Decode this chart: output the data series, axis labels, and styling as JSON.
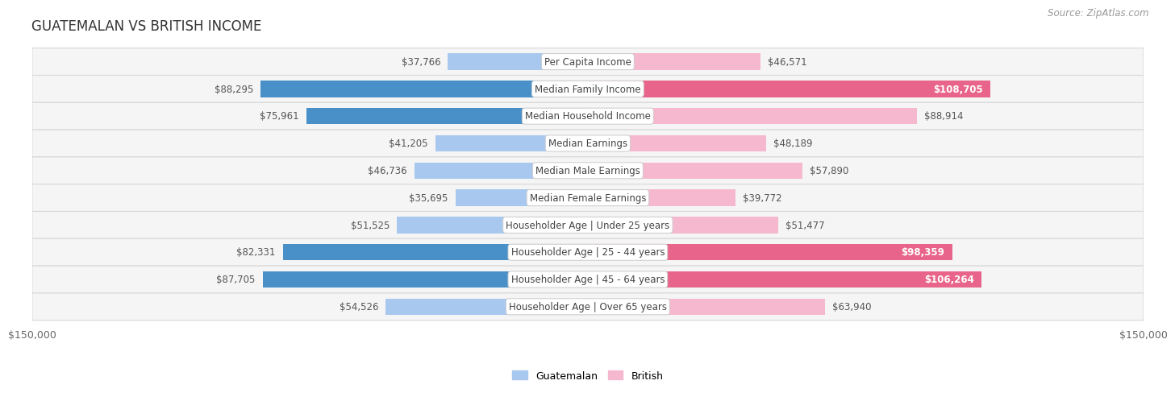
{
  "title": "GUATEMALAN VS BRITISH INCOME",
  "source": "Source: ZipAtlas.com",
  "x_max": 150000,
  "categories": [
    "Per Capita Income",
    "Median Family Income",
    "Median Household Income",
    "Median Earnings",
    "Median Male Earnings",
    "Median Female Earnings",
    "Householder Age | Under 25 years",
    "Householder Age | 25 - 44 years",
    "Householder Age | 45 - 64 years",
    "Householder Age | Over 65 years"
  ],
  "guatemalan_values": [
    37766,
    88295,
    75961,
    41205,
    46736,
    35695,
    51525,
    82331,
    87705,
    54526
  ],
  "british_values": [
    46571,
    108705,
    88914,
    48189,
    57890,
    39772,
    51477,
    98359,
    106264,
    63940
  ],
  "guatemalan_labels": [
    "$37,766",
    "$88,295",
    "$75,961",
    "$41,205",
    "$46,736",
    "$35,695",
    "$51,525",
    "$82,331",
    "$87,705",
    "$54,526"
  ],
  "british_labels": [
    "$46,571",
    "$108,705",
    "$88,914",
    "$48,189",
    "$57,890",
    "$39,772",
    "$51,477",
    "$98,359",
    "$106,264",
    "$63,940"
  ],
  "guatemalan_highlight": [
    false,
    true,
    true,
    false,
    false,
    false,
    false,
    true,
    true,
    false
  ],
  "british_highlight": [
    false,
    true,
    false,
    false,
    false,
    false,
    false,
    true,
    true,
    false
  ],
  "guatemalan_color_light": "#a8c8ef",
  "guatemalan_color_dark": "#4a90c8",
  "british_color_light": "#f5b8cf",
  "british_color_dark": "#e8648a",
  "row_bg_even": "#f5f5f5",
  "row_bg_odd": "#ebebeb",
  "row_border": "#d8d8d8",
  "label_fontsize": 8.5,
  "title_fontsize": 12,
  "source_fontsize": 8.5,
  "legend_fontsize": 9,
  "bar_height": 0.6
}
